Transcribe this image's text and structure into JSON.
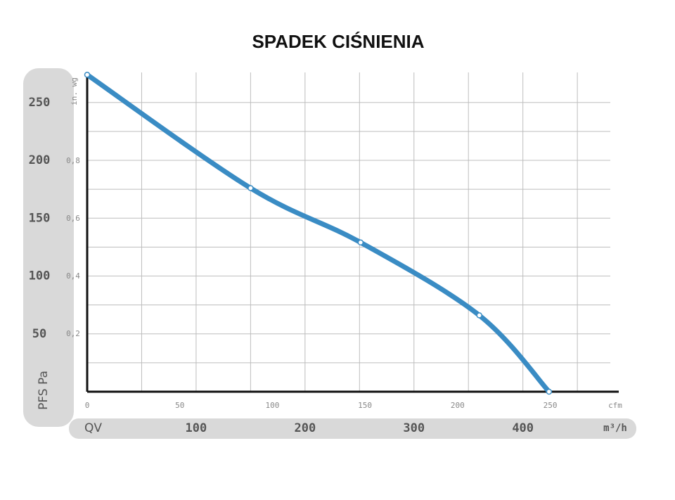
{
  "chart_data": {
    "type": "line",
    "title": "SPADEK CIŚNIENIA",
    "x": [
      0,
      150,
      251,
      360,
      424
    ],
    "values": [
      274,
      176,
      129,
      66,
      0
    ],
    "color": "#3a8cc4",
    "xlabel": "QV",
    "xunit": "m³/h",
    "ylabel": "PFS Pa",
    "xlim": [
      0,
      488
    ],
    "ylim": [
      0,
      276
    ],
    "xticks": [
      100,
      200,
      300,
      400
    ],
    "yticks": [
      50,
      100,
      150,
      200,
      250
    ],
    "xgrid": [
      50,
      100,
      150,
      200,
      250,
      300,
      350,
      400,
      450
    ],
    "ygrid": [
      25,
      50,
      75,
      100,
      125,
      150,
      175,
      200,
      225,
      250
    ],
    "grid": true,
    "x2label": "cfm",
    "x2lim": [
      0,
      287
    ],
    "x2ticks": [
      0,
      50,
      100,
      150,
      200,
      250
    ],
    "y2label": "in. wg",
    "y2lim": [
      0,
      1.108
    ],
    "y2ticks": [
      {
        "value": 0.2,
        "label": "0,2"
      },
      {
        "value": 0.4,
        "label": "0,4"
      },
      {
        "value": 0.6,
        "label": "0,6"
      },
      {
        "value": 0.8,
        "label": "0,8"
      }
    ]
  }
}
